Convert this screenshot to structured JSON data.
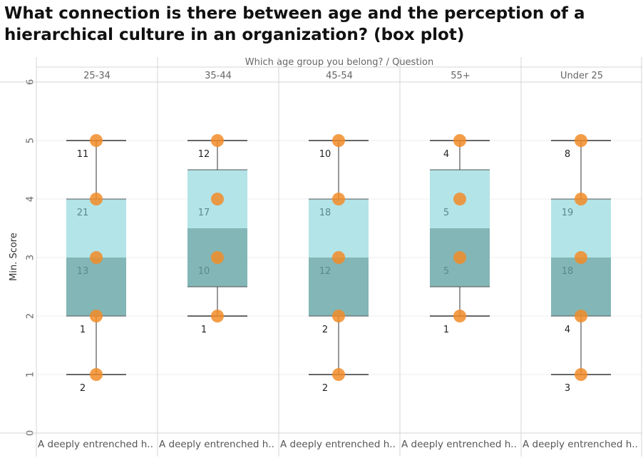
{
  "chart_data": {
    "type": "box",
    "title": "What connection is there between age and the perception of a hierarchical culture in an organization? (box plot)",
    "column_header_title": "Which age group you belong?  /  Question",
    "ylabel": "Min. Score",
    "ylim": [
      0,
      6
    ],
    "yticks": [
      "0",
      "1",
      "2",
      "3",
      "4",
      "5",
      "6"
    ],
    "grid": true,
    "colors": {
      "box_upper": "#b3e4e7",
      "box_lower": "#83b6b6",
      "point": "#f28c28",
      "whisker": "#333333"
    },
    "panels": [
      {
        "group": "25-34",
        "question": "A deeply entrenched h..",
        "box": {
          "min": 1,
          "q1": 2,
          "median": 3,
          "q3": 4,
          "max": 5
        },
        "points": [
          {
            "score": 1,
            "count": "2"
          },
          {
            "score": 2,
            "count": "1"
          },
          {
            "score": 3,
            "count": "13"
          },
          {
            "score": 4,
            "count": "21"
          },
          {
            "score": 5,
            "count": "11"
          }
        ]
      },
      {
        "group": "35-44",
        "question": "A deeply entrenched h..",
        "box": {
          "min": 2,
          "q1": 2.5,
          "median": 3.5,
          "q3": 4.5,
          "max": 5
        },
        "points": [
          {
            "score": 2,
            "count": "1"
          },
          {
            "score": 3,
            "count": "10"
          },
          {
            "score": 4,
            "count": "17"
          },
          {
            "score": 5,
            "count": "12"
          }
        ]
      },
      {
        "group": "45-54",
        "question": "A deeply entrenched h..",
        "box": {
          "min": 1,
          "q1": 2,
          "median": 3,
          "q3": 4,
          "max": 5
        },
        "points": [
          {
            "score": 1,
            "count": "2"
          },
          {
            "score": 2,
            "count": "2"
          },
          {
            "score": 3,
            "count": "12"
          },
          {
            "score": 4,
            "count": "18"
          },
          {
            "score": 5,
            "count": "10"
          }
        ]
      },
      {
        "group": "55+",
        "question": "A deeply entrenched h..",
        "box": {
          "min": 2,
          "q1": 2.5,
          "median": 3.5,
          "q3": 4.5,
          "max": 5
        },
        "points": [
          {
            "score": 2,
            "count": "1"
          },
          {
            "score": 3,
            "count": "5"
          },
          {
            "score": 4,
            "count": "5"
          },
          {
            "score": 5,
            "count": "4"
          }
        ]
      },
      {
        "group": "Under 25",
        "question": "A deeply entrenched h..",
        "box": {
          "min": 1,
          "q1": 2,
          "median": 3,
          "q3": 4,
          "max": 5
        },
        "points": [
          {
            "score": 1,
            "count": "3"
          },
          {
            "score": 2,
            "count": "4"
          },
          {
            "score": 3,
            "count": "18"
          },
          {
            "score": 4,
            "count": "19"
          },
          {
            "score": 5,
            "count": "8"
          }
        ]
      }
    ]
  }
}
